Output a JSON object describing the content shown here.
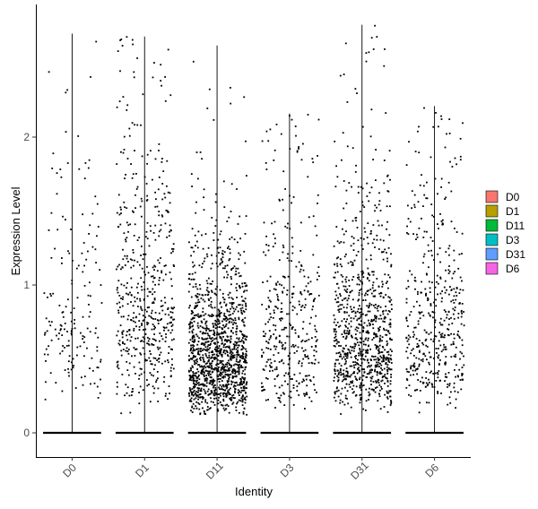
{
  "chart_data": {
    "type": "violin-jitter",
    "xlabel": "Identity",
    "ylabel": "Expression Level",
    "categories": [
      "D0",
      "D1",
      "D11",
      "D3",
      "D31",
      "D6"
    ],
    "ylim": [
      -0.15,
      2.8
    ],
    "yticks": [
      0,
      1,
      2
    ],
    "grid": false,
    "legend_position": "right",
    "legend": [
      {
        "label": "D0",
        "color": "#F8766D"
      },
      {
        "label": "D1",
        "color": "#B79F00"
      },
      {
        "label": "D11",
        "color": "#00BA38"
      },
      {
        "label": "D3",
        "color": "#00BFC4"
      },
      {
        "label": "D31",
        "color": "#619CFF"
      },
      {
        "label": "D6",
        "color": "#F564E3"
      }
    ],
    "series": [
      {
        "name": "D0",
        "max": 2.7,
        "n_nonzero": 170,
        "median_nonzero": 0.8
      },
      {
        "name": "D1",
        "max": 2.68,
        "n_nonzero": 520,
        "median_nonzero": 0.85
      },
      {
        "name": "D11",
        "max": 2.62,
        "n_nonzero": 1300,
        "median_nonzero": 0.5
      },
      {
        "name": "D3",
        "max": 2.16,
        "n_nonzero": 380,
        "median_nonzero": 0.7
      },
      {
        "name": "D31",
        "max": 2.76,
        "n_nonzero": 900,
        "median_nonzero": 0.65
      },
      {
        "name": "D6",
        "max": 2.21,
        "n_nonzero": 460,
        "median_nonzero": 0.75
      }
    ]
  }
}
